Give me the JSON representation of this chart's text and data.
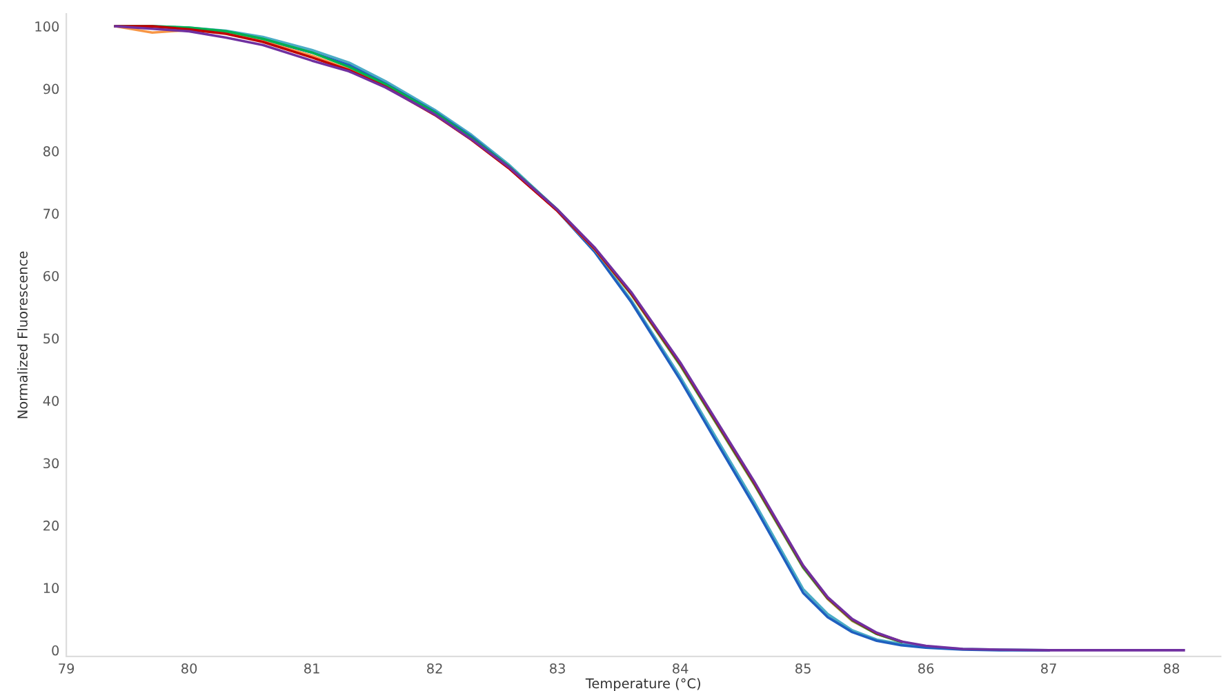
{
  "chart_data": {
    "type": "line",
    "xlabel": "Temperature (°C)",
    "ylabel": "Normalized Fluorescence",
    "xlim": [
      79,
      88.4
    ],
    "ylim": [
      -1,
      102
    ],
    "xticks": [
      79,
      80,
      81,
      82,
      83,
      84,
      85,
      86,
      87,
      88
    ],
    "yticks": [
      0,
      10,
      20,
      30,
      40,
      50,
      60,
      70,
      80,
      90,
      100
    ],
    "grid": false,
    "legend": false,
    "marker": "none",
    "line_style": "solid",
    "x": [
      79.4,
      79.7,
      80,
      80.3,
      80.6,
      81,
      81.3,
      81.6,
      82,
      82.3,
      82.6,
      83,
      83.3,
      83.6,
      84,
      84.3,
      84.6,
      85,
      85.2,
      85.4,
      85.6,
      85.8,
      86,
      86.3,
      86.6,
      87,
      87.5,
      88.1
    ],
    "series": [
      {
        "color": "#4bacc6",
        "values": [
          100,
          100,
          99.8,
          99.3,
          98.3,
          96.2,
          94.2,
          91.2,
          86.6,
          82.6,
          77.9,
          70.6,
          64.1,
          56.1,
          43.8,
          33.8,
          23.8,
          9.8,
          5.8,
          3.2,
          1.7,
          1,
          0.5,
          0.2,
          0.1,
          0,
          null,
          null
        ]
      },
      {
        "color": "#1f5fbf",
        "values": [
          null,
          null,
          99.7,
          99.1,
          97.9,
          95.8,
          93.8,
          90.8,
          86.3,
          82.3,
          77.6,
          70.4,
          63.9,
          55.8,
          43.3,
          33.2,
          23.2,
          9.2,
          5.3,
          2.9,
          1.5,
          0.8,
          0.4,
          0.1,
          0,
          0,
          null,
          null
        ]
      },
      {
        "color": "#f79646",
        "values": [
          100,
          99,
          99.4,
          98.9,
          97.6,
          95.3,
          93.1,
          90.4,
          85.9,
          81.9,
          77.4,
          70.4,
          64.3,
          57,
          45.6,
          36.1,
          26.6,
          13.2,
          8.2,
          4.7,
          2.6,
          1.3,
          null,
          null,
          null,
          null,
          null,
          null
        ]
      },
      {
        "color": "#00b050",
        "values": [
          100,
          100,
          99.8,
          99.2,
          98,
          95.8,
          93.5,
          90.7,
          86.2,
          82.1,
          77.6,
          70.6,
          64.4,
          57.1,
          45.7,
          36.2,
          26.7,
          13.3,
          8.3,
          4.8,
          2.6,
          1.3,
          null,
          null,
          null,
          null,
          null,
          null
        ]
      },
      {
        "color": "#c00000",
        "values": [
          100,
          100,
          99.5,
          98.8,
          97.5,
          95,
          93,
          90.3,
          85.8,
          81.8,
          77.3,
          70.4,
          64.4,
          57.2,
          45.9,
          36.4,
          26.9,
          13.5,
          8.4,
          4.9,
          2.7,
          1.4,
          null,
          null,
          null,
          null,
          null,
          null
        ]
      },
      {
        "color": "#7030a0",
        "values": [
          100,
          99.6,
          99.2,
          98.2,
          97,
          94.5,
          92.8,
          90.2,
          85.9,
          81.9,
          77.5,
          70.6,
          64.6,
          57.4,
          46.1,
          36.6,
          27.1,
          13.6,
          8.5,
          5,
          2.8,
          1.4,
          0.7,
          0.2,
          0.1,
          0,
          0,
          0
        ]
      }
    ]
  }
}
